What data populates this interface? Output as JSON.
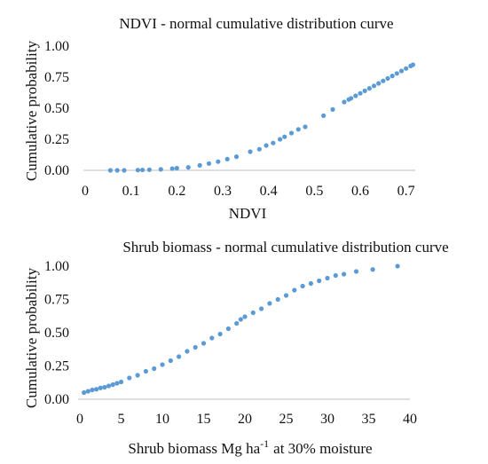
{
  "chart_data": [
    {
      "type": "scatter",
      "title": "NDVI - normal cumulative distribution curve",
      "xlabel": "NDVI",
      "ylabel": "Cumulative probability",
      "xlim": [
        0,
        0.72
      ],
      "ylim": [
        0,
        1.0
      ],
      "xticks": [
        "0",
        "0.1",
        "0.2",
        "0.3",
        "0.4",
        "0.5",
        "0.6",
        "0.7"
      ],
      "xtick_values": [
        0,
        0.1,
        0.2,
        0.3,
        0.4,
        0.5,
        0.6,
        0.7
      ],
      "yticks": [
        "0.00",
        "0.25",
        "0.50",
        "0.75",
        "1.00"
      ],
      "ytick_values": [
        0,
        0.25,
        0.5,
        0.75,
        1.0
      ],
      "grid": false,
      "color": "#5B9BD5",
      "series": [
        {
          "points": [
            [
              0.055,
              0.0
            ],
            [
              0.07,
              0.0
            ],
            [
              0.085,
              0.0
            ],
            [
              0.115,
              0.002
            ],
            [
              0.125,
              0.003
            ],
            [
              0.14,
              0.005
            ],
            [
              0.165,
              0.008
            ],
            [
              0.19,
              0.014
            ],
            [
              0.2,
              0.018
            ],
            [
              0.225,
              0.024
            ],
            [
              0.25,
              0.04
            ],
            [
              0.27,
              0.055
            ],
            [
              0.29,
              0.07
            ],
            [
              0.31,
              0.09
            ],
            [
              0.33,
              0.11
            ],
            [
              0.36,
              0.15
            ],
            [
              0.38,
              0.17
            ],
            [
              0.395,
              0.2
            ],
            [
              0.41,
              0.22
            ],
            [
              0.425,
              0.25
            ],
            [
              0.435,
              0.27
            ],
            [
              0.45,
              0.3
            ],
            [
              0.465,
              0.33
            ],
            [
              0.48,
              0.35
            ],
            [
              0.52,
              0.44
            ],
            [
              0.54,
              0.49
            ],
            [
              0.565,
              0.55
            ],
            [
              0.575,
              0.57
            ],
            [
              0.58,
              0.58
            ],
            [
              0.59,
              0.6
            ],
            [
              0.6,
              0.62
            ],
            [
              0.61,
              0.64
            ],
            [
              0.62,
              0.66
            ],
            [
              0.63,
              0.68
            ],
            [
              0.64,
              0.7
            ],
            [
              0.65,
              0.72
            ],
            [
              0.66,
              0.74
            ],
            [
              0.67,
              0.76
            ],
            [
              0.68,
              0.78
            ],
            [
              0.69,
              0.8
            ],
            [
              0.7,
              0.82
            ],
            [
              0.71,
              0.84
            ],
            [
              0.715,
              0.85
            ]
          ]
        }
      ]
    },
    {
      "type": "scatter",
      "title": "Shrub biomass - normal cumulative distribution curve",
      "xlabel": "Shrub biomass Mg ha",
      "xlabel_sup": "-1",
      "xlabel_suffix": "at 30% moisture",
      "ylabel": "Cumulative probability",
      "xlim": [
        0,
        40
      ],
      "ylim": [
        0,
        1.0
      ],
      "xticks": [
        "0",
        "5",
        "10",
        "15",
        "20",
        "25",
        "30",
        "35",
        "40"
      ],
      "xtick_values": [
        0,
        5,
        10,
        15,
        20,
        25,
        30,
        35,
        40
      ],
      "yticks": [
        "0.00",
        "0.25",
        "0.50",
        "0.75",
        "1.00"
      ],
      "ytick_values": [
        0,
        0.25,
        0.5,
        0.75,
        1.0
      ],
      "grid": false,
      "color": "#5B9BD5",
      "series": [
        {
          "points": [
            [
              0.5,
              0.05
            ],
            [
              1.0,
              0.06
            ],
            [
              1.5,
              0.07
            ],
            [
              2.0,
              0.075
            ],
            [
              2.5,
              0.085
            ],
            [
              3.0,
              0.09
            ],
            [
              3.5,
              0.1
            ],
            [
              4.0,
              0.11
            ],
            [
              4.5,
              0.12
            ],
            [
              5.0,
              0.13
            ],
            [
              6.0,
              0.16
            ],
            [
              7.0,
              0.18
            ],
            [
              8.0,
              0.21
            ],
            [
              9.0,
              0.23
            ],
            [
              10.0,
              0.26
            ],
            [
              11.0,
              0.29
            ],
            [
              12.0,
              0.32
            ],
            [
              13.0,
              0.36
            ],
            [
              14.0,
              0.39
            ],
            [
              15.0,
              0.42
            ],
            [
              16.0,
              0.46
            ],
            [
              17.0,
              0.49
            ],
            [
              18.0,
              0.53
            ],
            [
              19.0,
              0.57
            ],
            [
              19.5,
              0.6
            ],
            [
              20.0,
              0.62
            ],
            [
              21.0,
              0.65
            ],
            [
              22.0,
              0.68
            ],
            [
              23.0,
              0.72
            ],
            [
              24.0,
              0.75
            ],
            [
              25.0,
              0.78
            ],
            [
              26.0,
              0.82
            ],
            [
              27.0,
              0.85
            ],
            [
              28.0,
              0.87
            ],
            [
              29.0,
              0.89
            ],
            [
              30.0,
              0.91
            ],
            [
              31.0,
              0.93
            ],
            [
              32.0,
              0.94
            ],
            [
              33.5,
              0.96
            ],
            [
              35.5,
              0.975
            ],
            [
              38.5,
              1.0
            ]
          ]
        }
      ]
    }
  ]
}
